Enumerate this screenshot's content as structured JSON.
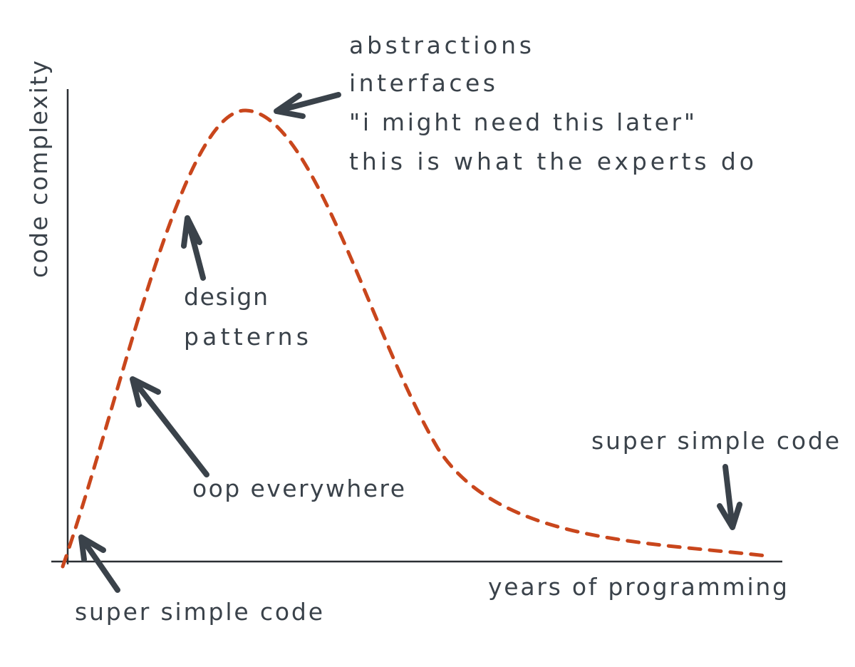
{
  "axes": {
    "y_label": "code complexity",
    "x_label": "years of programming"
  },
  "annotations": {
    "start": "super simple code",
    "oop": "oop everywhere",
    "design": [
      "design",
      "patterns"
    ],
    "peak": [
      "abstractions",
      "interfaces",
      "\"i might need this later\"",
      "this is what the experts do"
    ],
    "end": "super simple code"
  },
  "colors": {
    "curve": "#c9461c",
    "ink": "#3a424a"
  }
}
